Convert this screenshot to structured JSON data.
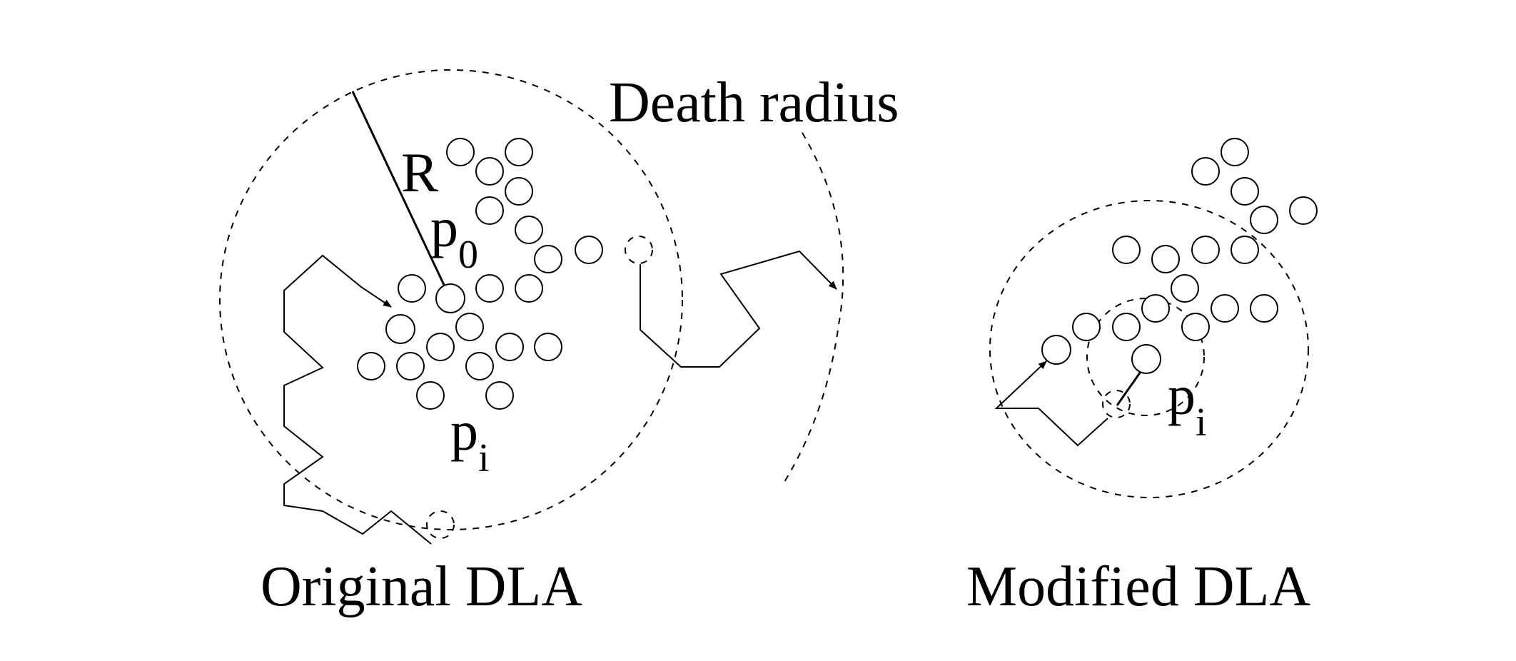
{
  "labels": {
    "death_radius": "Death radius",
    "radius_symbol": "R",
    "seed_base": "p",
    "seed_sub": "0",
    "particle_base": "p",
    "particle_sub": "i",
    "original_title": "Original DLA",
    "modified_title": "Modified DLA"
  },
  "colors": {
    "seed_particle": "#f6d248",
    "walking_particle": "#3fa3a3",
    "outline": "#000000",
    "background": "#ffffff"
  }
}
